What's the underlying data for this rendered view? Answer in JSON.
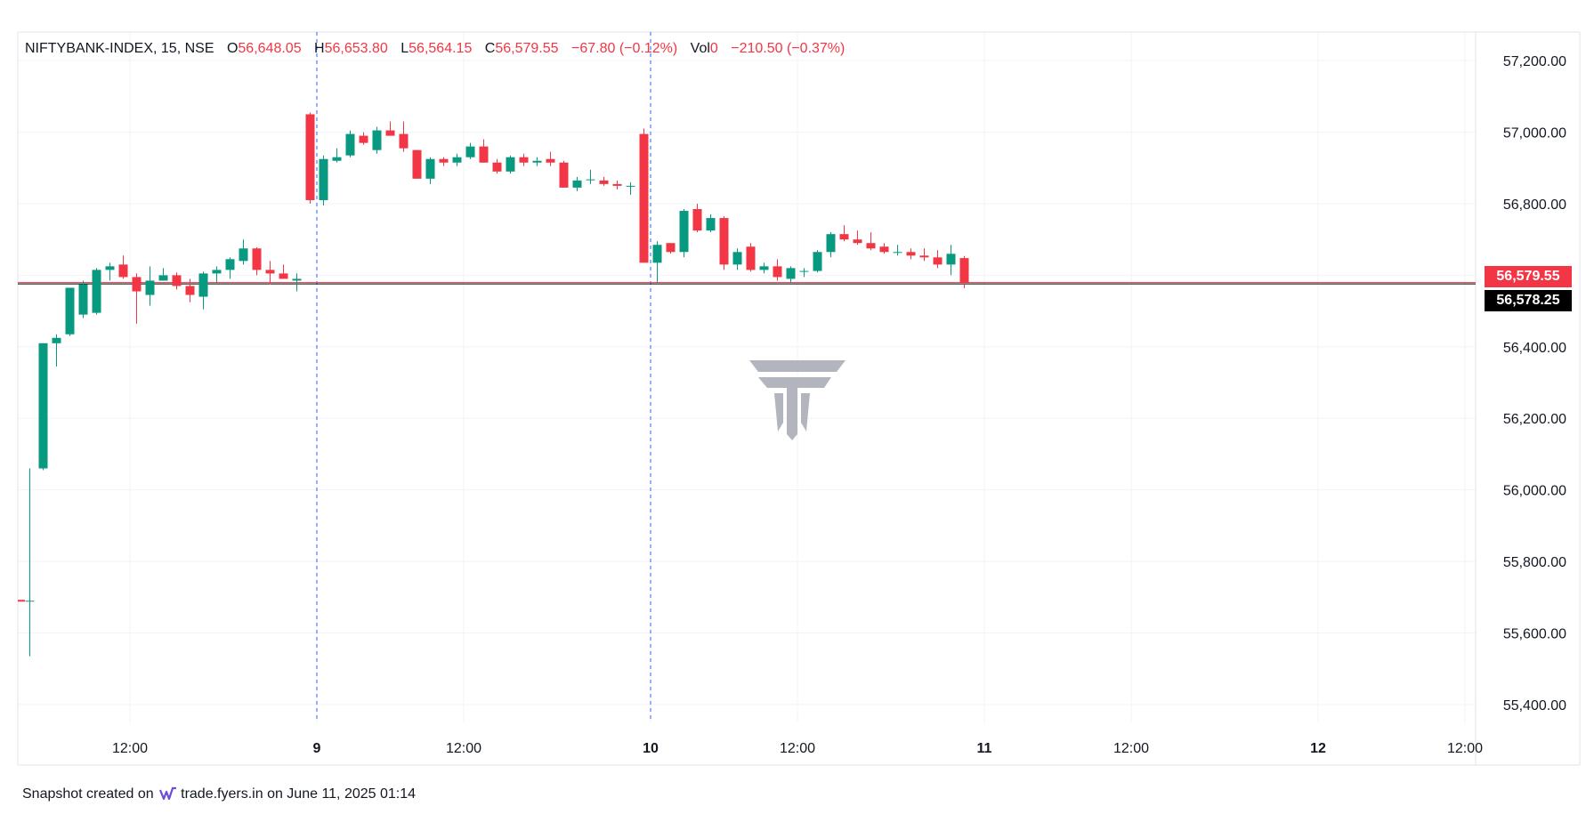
{
  "legend": {
    "symbol": "NIFTYBANK-INDEX, 15, NSE",
    "open_label": "O",
    "open": "56,648.05",
    "high_label": "H",
    "high": "56,653.80",
    "low_label": "L",
    "low": "56,564.15",
    "close_label": "C",
    "close": "56,579.55",
    "change": "−67.80 (−0.12%)",
    "vol_label": "Vol",
    "vol": "0",
    "extra_change": "−210.50 (−0.37%)"
  },
  "price_labels": {
    "last": "56,579.55",
    "crosshair": "56,578.25"
  },
  "footer": {
    "prefix": "Snapshot created on",
    "brand": "trade.fyers.in",
    "suffix": "on June 11, 2025 01:14"
  },
  "colors": {
    "up": "#089981",
    "down": "#f23645",
    "grid": "#f0f3fa",
    "session": "#2962ff"
  },
  "chart_data": {
    "type": "candlestick",
    "ylim": [
      55350,
      57280
    ],
    "y_ticks": [
      55400,
      55600,
      55800,
      56000,
      56200,
      56400,
      56600,
      56800,
      57000,
      57200
    ],
    "y_tick_labels": [
      "55,400.00",
      "55,600.00",
      "55,800.00",
      "56,000.00",
      "56,200.00",
      "56,400.00",
      "56,600.00",
      "56,800.00",
      "57,000.00",
      "57,200.00"
    ],
    "x_ticks": [
      {
        "label": "12:00",
        "bar": 7.5
      },
      {
        "label": "9",
        "bar": 21.5
      },
      {
        "label": "12:00",
        "bar": 32.5
      },
      {
        "label": "10",
        "bar": 46.5
      },
      {
        "label": "12:00",
        "bar": 57.5
      },
      {
        "label": "11",
        "bar": 71.5
      },
      {
        "label": "12:00",
        "bar": 82.5
      },
      {
        "label": "12",
        "bar": 96.5
      },
      {
        "label": "12:00",
        "bar": 107.5
      }
    ],
    "session_breaks": [
      21.5,
      46.5
    ],
    "last_price": 56579.55,
    "crosshair_price": 56578.25,
    "marker_price": 55690,
    "candles": [
      [
        55690,
        56060,
        55535,
        55690
      ],
      [
        56060,
        56410,
        56055,
        56410
      ],
      [
        56410,
        56435,
        56345,
        56425
      ],
      [
        56435,
        56565,
        56430,
        56565
      ],
      [
        56490,
        56585,
        56480,
        56575
      ],
      [
        56495,
        56620,
        56490,
        56615
      ],
      [
        56615,
        56635,
        56585,
        56625
      ],
      [
        56630,
        56655,
        56590,
        56595
      ],
      [
        56595,
        56605,
        56465,
        56555
      ],
      [
        56545,
        56625,
        56515,
        56585
      ],
      [
        56585,
        56620,
        56585,
        56600
      ],
      [
        56600,
        56608,
        56560,
        56570
      ],
      [
        56570,
        56590,
        56525,
        56545
      ],
      [
        56540,
        56610,
        56505,
        56605
      ],
      [
        56605,
        56625,
        56580,
        56615
      ],
      [
        56615,
        56650,
        56590,
        56645
      ],
      [
        56640,
        56700,
        56630,
        56675
      ],
      [
        56675,
        56678,
        56600,
        56615
      ],
      [
        56615,
        56640,
        56575,
        56605
      ],
      [
        56605,
        56630,
        56590,
        56590
      ],
      [
        56585,
        56605,
        56555,
        56590
      ],
      [
        57050,
        57055,
        56800,
        56810
      ],
      [
        56810,
        56935,
        56795,
        56925
      ],
      [
        56920,
        56955,
        56915,
        56930
      ],
      [
        56935,
        57005,
        56930,
        56995
      ],
      [
        56990,
        57000,
        56965,
        56970
      ],
      [
        56950,
        57015,
        56940,
        57005
      ],
      [
        57005,
        57030,
        56995,
        56990
      ],
      [
        56995,
        57030,
        56945,
        56955
      ],
      [
        56950,
        56950,
        56870,
        56870
      ],
      [
        56870,
        56930,
        56855,
        56925
      ],
      [
        56925,
        56930,
        56905,
        56915
      ],
      [
        56915,
        56940,
        56905,
        56930
      ],
      [
        56930,
        56970,
        56925,
        56960
      ],
      [
        56960,
        56980,
        56915,
        56915
      ],
      [
        56915,
        56925,
        56885,
        56890
      ],
      [
        56890,
        56935,
        56885,
        56930
      ],
      [
        56930,
        56940,
        56905,
        56915
      ],
      [
        56915,
        56930,
        56905,
        56920
      ],
      [
        56925,
        56945,
        56905,
        56915
      ],
      [
        56915,
        56920,
        56845,
        56845
      ],
      [
        56845,
        56875,
        56835,
        56865
      ],
      [
        56868,
        56895,
        56855,
        56868
      ],
      [
        56865,
        56875,
        56850,
        56855
      ],
      [
        56855,
        56865,
        56840,
        56850
      ],
      [
        56850,
        56860,
        56825,
        56850
      ],
      [
        56995,
        57010,
        56640,
        56635
      ],
      [
        56635,
        56695,
        56580,
        56685
      ],
      [
        56690,
        56690,
        56660,
        56665
      ],
      [
        56665,
        56785,
        56650,
        56780
      ],
      [
        56785,
        56800,
        56720,
        56725
      ],
      [
        56725,
        56770,
        56720,
        56760
      ],
      [
        56760,
        56765,
        56615,
        56630
      ],
      [
        56630,
        56675,
        56615,
        56665
      ],
      [
        56680,
        56690,
        56610,
        56615
      ],
      [
        56615,
        56635,
        56605,
        56625
      ],
      [
        56625,
        56645,
        56585,
        56595
      ],
      [
        56590,
        56625,
        56580,
        56620
      ],
      [
        56610,
        56620,
        56595,
        56612
      ],
      [
        56612,
        56670,
        56608,
        56665
      ],
      [
        56665,
        56720,
        56650,
        56715
      ],
      [
        56715,
        56740,
        56695,
        56700
      ],
      [
        56700,
        56725,
        56685,
        56690
      ],
      [
        56690,
        56720,
        56670,
        56675
      ],
      [
        56680,
        56690,
        56660,
        56665
      ],
      [
        56665,
        56685,
        56655,
        56665
      ],
      [
        56665,
        56675,
        56645,
        56655
      ],
      [
        56655,
        56675,
        56640,
        56650
      ],
      [
        56650,
        56670,
        56620,
        56630
      ],
      [
        56630,
        56685,
        56600,
        56660
      ],
      [
        56648.05,
        56653.8,
        56564.15,
        56579.55
      ]
    ]
  }
}
